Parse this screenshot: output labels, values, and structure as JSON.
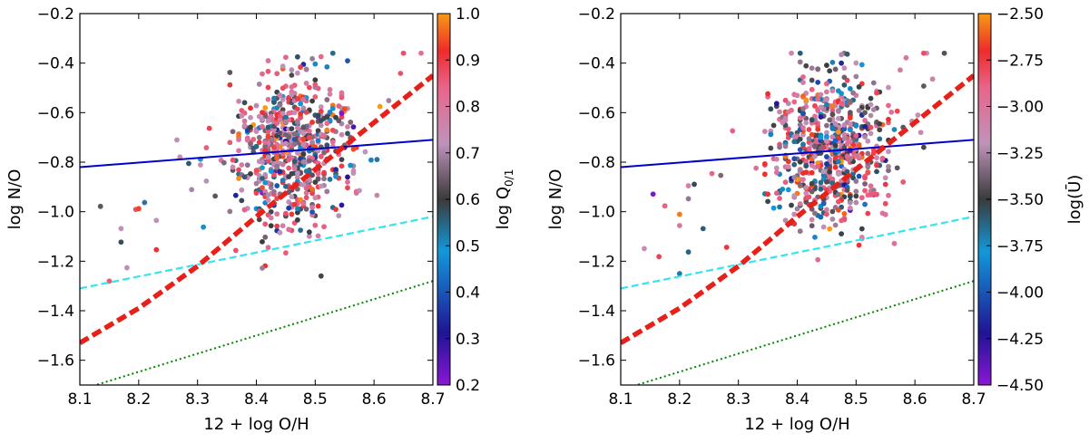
{
  "chart_data": [
    {
      "type": "scatter",
      "xlabel": "12 + log O/H",
      "ylabel": "log N/O",
      "xlim": [
        8.1,
        8.7
      ],
      "ylim": [
        -1.7,
        -0.2
      ],
      "xticks": [
        8.1,
        8.2,
        8.3,
        8.4,
        8.5,
        8.6,
        8.7
      ],
      "xtick_labels": [
        "8.1",
        "8.2",
        "8.3",
        "8.4",
        "8.5",
        "8.6",
        "8.7"
      ],
      "yticks": [
        -1.6,
        -1.4,
        -1.2,
        -1.0,
        -0.8,
        -0.6,
        -0.4,
        -0.2
      ],
      "ytick_labels": [
        "−1.6",
        "−1.4",
        "−1.2",
        "−1.0",
        "−0.8",
        "−0.6",
        "−0.4",
        "−0.2"
      ],
      "grid": false,
      "colorbar": {
        "label": "log Q",
        "label_sub": "0/1",
        "range": [
          0.2,
          1.0
        ],
        "ticks": [
          1.0,
          0.9,
          0.8,
          0.7,
          0.6,
          0.5,
          0.4,
          0.3,
          0.2
        ],
        "tick_labels": [
          "1.0",
          "0.9",
          "0.8",
          "0.7",
          "0.6",
          "0.5",
          "0.4",
          "0.3",
          "0.2"
        ]
      },
      "lines": [
        {
          "style": "solid",
          "color": "#0000cc",
          "x": [
            8.1,
            8.7
          ],
          "y": [
            -0.82,
            -0.71
          ]
        },
        {
          "style": "dashed",
          "color": "#33e5f0",
          "x": [
            8.1,
            8.7
          ],
          "y": [
            -1.31,
            -1.02
          ]
        },
        {
          "style": "dotted",
          "color": "#008800",
          "x": [
            8.1,
            8.7
          ],
          "y": [
            -1.72,
            -1.28
          ]
        },
        {
          "style": "thick-dashed",
          "color": "#e8201a",
          "x": [
            8.1,
            8.2,
            8.3,
            8.4,
            8.5,
            8.6,
            8.7
          ],
          "y": [
            -1.53,
            -1.39,
            -1.22,
            -1.02,
            -0.83,
            -0.64,
            -0.45
          ]
        }
      ],
      "points": {
        "count": 700,
        "x_center": 8.46,
        "x_spread": 0.05,
        "x_range": [
          8.13,
          8.68
        ],
        "y_center": -0.75,
        "y_spread": 0.16,
        "y_range": [
          -1.35,
          -0.36
        ],
        "color_stops": [
          "#8a17d6",
          "#1f1494",
          "#1398d9",
          "#3a3a3a",
          "#bf93bb",
          "#e8658b",
          "#ee2b2a",
          "#f79a15"
        ]
      }
    },
    {
      "type": "scatter",
      "xlabel": "12 + log O/H",
      "ylabel": "log N/O",
      "xlim": [
        8.1,
        8.7
      ],
      "ylim": [
        -1.7,
        -0.2
      ],
      "xticks": [
        8.1,
        8.2,
        8.3,
        8.4,
        8.5,
        8.6,
        8.7
      ],
      "xtick_labels": [
        "8.1",
        "8.2",
        "8.3",
        "8.4",
        "8.5",
        "8.6",
        "8.7"
      ],
      "yticks": [
        -1.6,
        -1.4,
        -1.2,
        -1.0,
        -0.8,
        -0.6,
        -0.4,
        -0.2
      ],
      "ytick_labels": [
        "−1.6",
        "−1.4",
        "−1.2",
        "−1.0",
        "−0.8",
        "−0.6",
        "−0.4",
        "−0.2"
      ],
      "grid": false,
      "colorbar": {
        "label": "log(Ū)",
        "label_sub": "",
        "range": [
          -4.5,
          -2.5
        ],
        "ticks": [
          -2.5,
          -2.75,
          -3.0,
          -3.25,
          -3.5,
          -3.75,
          -4.0,
          -4.25,
          -4.5
        ],
        "tick_labels": [
          "−2.50",
          "−2.75",
          "−3.00",
          "−3.25",
          "−3.50",
          "−3.75",
          "−4.00",
          "−4.25",
          "−4.50"
        ]
      },
      "lines": [
        {
          "style": "solid",
          "color": "#0000cc",
          "x": [
            8.1,
            8.7
          ],
          "y": [
            -0.82,
            -0.71
          ]
        },
        {
          "style": "dashed",
          "color": "#33e5f0",
          "x": [
            8.1,
            8.7
          ],
          "y": [
            -1.31,
            -1.02
          ]
        },
        {
          "style": "dotted",
          "color": "#008800",
          "x": [
            8.1,
            8.7
          ],
          "y": [
            -1.72,
            -1.28
          ]
        },
        {
          "style": "thick-dashed",
          "color": "#e8201a",
          "x": [
            8.1,
            8.2,
            8.3,
            8.4,
            8.5,
            8.6,
            8.7
          ],
          "y": [
            -1.53,
            -1.39,
            -1.22,
            -1.02,
            -0.83,
            -0.64,
            -0.45
          ]
        }
      ],
      "points": {
        "count": 700,
        "x_center": 8.46,
        "x_spread": 0.05,
        "x_range": [
          8.13,
          8.68
        ],
        "y_center": -0.75,
        "y_spread": 0.16,
        "y_range": [
          -1.35,
          -0.36
        ],
        "color_stops": [
          "#8a17d6",
          "#1f1494",
          "#1398d9",
          "#3a3a3a",
          "#bf93bb",
          "#e8658b",
          "#ee2b2a",
          "#f79a15"
        ]
      }
    }
  ]
}
